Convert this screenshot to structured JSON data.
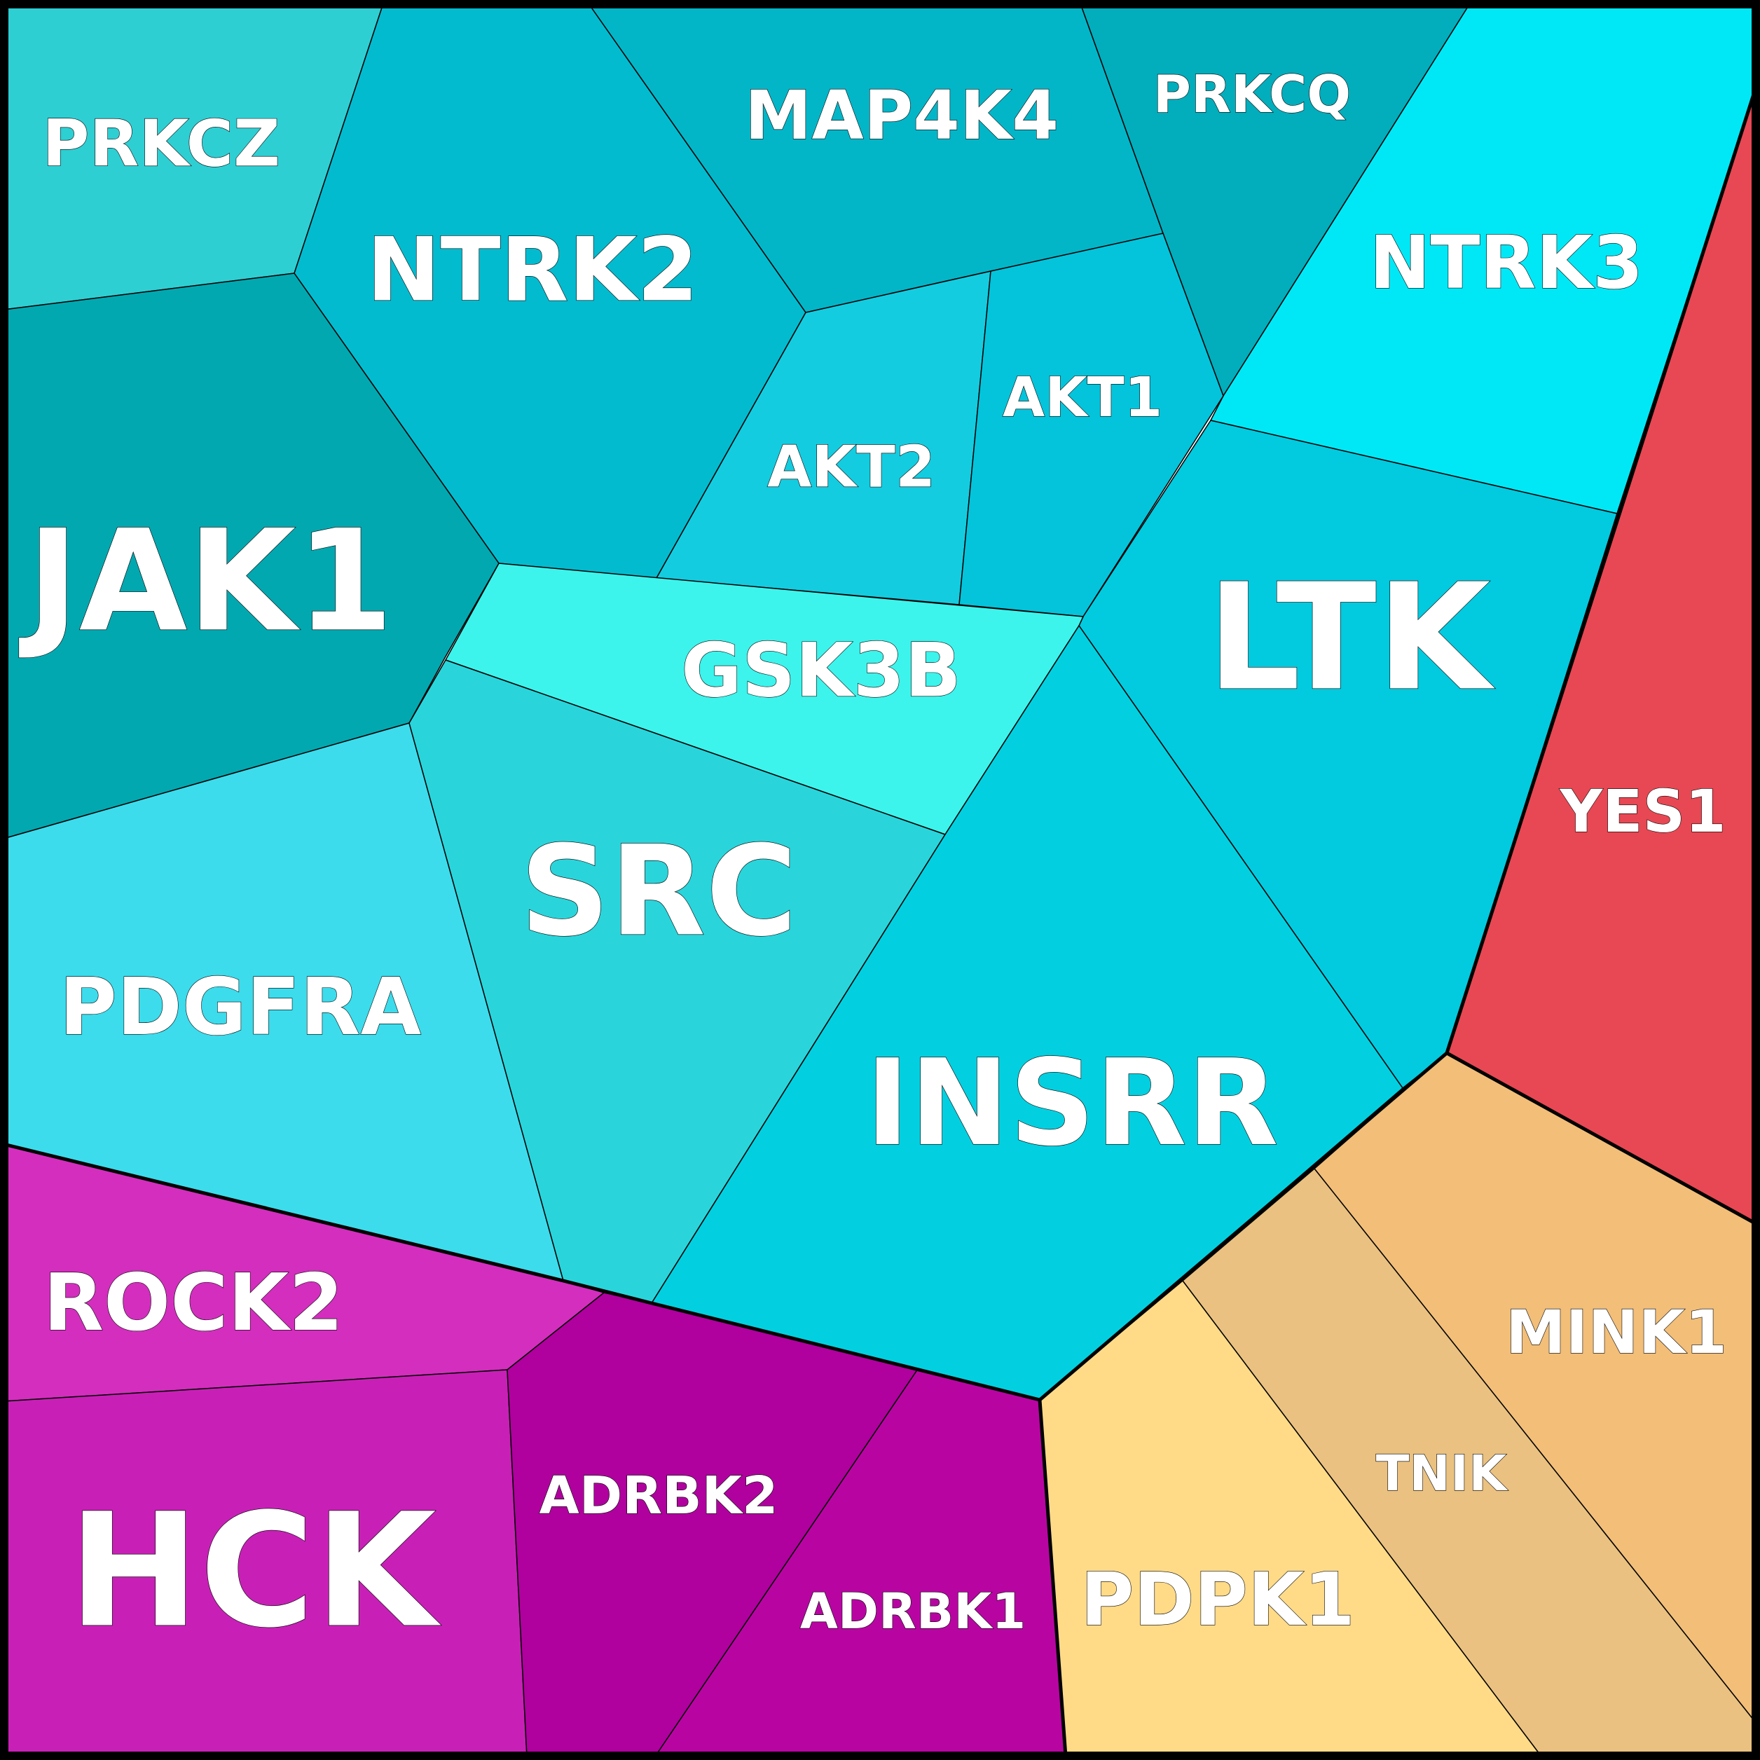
{
  "diagram": {
    "type": "voronoi-treemap",
    "groups": [
      {
        "id": "teal",
        "cells": [
          {
            "id": "prkcz",
            "label": "PRKCZ",
            "color": "#2ECFD3"
          },
          {
            "id": "ntrk2",
            "label": "NTRK2",
            "color": "#03BBCF"
          },
          {
            "id": "map4k4",
            "label": "MAP4K4",
            "color": "#02B6C8"
          },
          {
            "id": "prkcq",
            "label": "PRKCQ",
            "color": "#02ADBC"
          },
          {
            "id": "ntrk3",
            "label": "NTRK3",
            "color": "#00E8F6"
          },
          {
            "id": "jak1",
            "label": "JAK1",
            "color": "#02A8B0"
          },
          {
            "id": "akt2",
            "label": "AKT2",
            "color": "#14CCE0"
          },
          {
            "id": "akt1",
            "label": "AKT1",
            "color": "#03C4DB"
          },
          {
            "id": "ltk",
            "label": "LTK",
            "color": "#02CADF"
          },
          {
            "id": "gsk3b",
            "label": "GSK3B",
            "color": "#3CF4EC"
          },
          {
            "id": "pdgfra",
            "label": "PDGFRA",
            "color": "#3CDCEC"
          },
          {
            "id": "src",
            "label": "SRC",
            "color": "#29D5DB"
          },
          {
            "id": "insrr",
            "label": "INSRR",
            "color": "#02D0E0"
          }
        ]
      },
      {
        "id": "red",
        "cells": [
          {
            "id": "yes1",
            "label": "YES1",
            "color": "#E84853"
          }
        ]
      },
      {
        "id": "magenta",
        "cells": [
          {
            "id": "rock2",
            "label": "ROCK2",
            "color": "#D42EBE"
          },
          {
            "id": "hck",
            "label": "HCK",
            "color": "#C820B6"
          },
          {
            "id": "adrbk2",
            "label": "ADRBK2",
            "color": "#B0009E"
          },
          {
            "id": "adrbk1",
            "label": "ADRBK1",
            "color": "#B805A2"
          }
        ]
      },
      {
        "id": "orange",
        "cells": [
          {
            "id": "mink1",
            "label": "MINK1",
            "color": "#F2BE78"
          },
          {
            "id": "tnik",
            "label": "TNIK",
            "color": "#EAC180"
          },
          {
            "id": "pdpk1",
            "label": "PDPK1",
            "color": "#FFDB88"
          }
        ]
      }
    ]
  }
}
